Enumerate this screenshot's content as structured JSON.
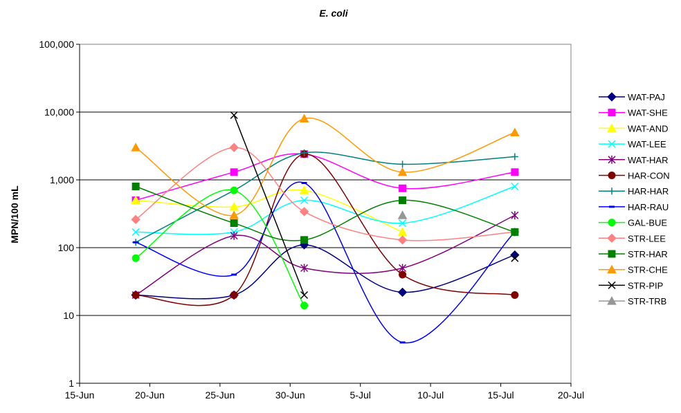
{
  "chart_data": {
    "type": "line",
    "title": "E. coli",
    "xlabel": "",
    "ylabel": "MPN/100 mL",
    "y_scale": "log",
    "ylim": [
      1,
      100000
    ],
    "y_ticks": [
      "1",
      "10",
      "100",
      "1,000",
      "10,000",
      "100,000"
    ],
    "xlim": [
      "2024-06-15",
      "2024-07-20"
    ],
    "x_ticks": [
      "15-Jun",
      "20-Jun",
      "25-Jun",
      "30-Jun",
      "5-Jul",
      "10-Jul",
      "15-Jul",
      "20-Jul"
    ],
    "grid": "horizontal major lines",
    "legend_position": "right",
    "smooth_lines": true,
    "series": [
      {
        "name": "WAT-PAJ",
        "color": "#000080",
        "marker": "diamond",
        "points": [
          [
            "2024-06-19",
            20
          ],
          [
            "2024-06-26",
            20
          ],
          [
            "2024-07-01",
            110
          ],
          [
            "2024-07-08",
            22
          ],
          [
            "2024-07-16",
            78
          ]
        ]
      },
      {
        "name": "WAT-SHE",
        "color": "#FF00FF",
        "marker": "square",
        "points": [
          [
            "2024-06-19",
            500
          ],
          [
            "2024-06-26",
            1300
          ],
          [
            "2024-07-01",
            2400
          ],
          [
            "2024-07-08",
            750
          ],
          [
            "2024-07-16",
            1300
          ]
        ]
      },
      {
        "name": "WAT-AND",
        "color": "#FFFF00",
        "marker": "triangle",
        "points": [
          [
            "2024-06-19",
            500
          ],
          [
            "2024-06-26",
            400
          ],
          [
            "2024-07-01",
            700
          ],
          [
            "2024-07-08",
            170
          ]
        ]
      },
      {
        "name": "WAT-LEE",
        "color": "#00FFFF",
        "marker": "x",
        "points": [
          [
            "2024-06-19",
            170
          ],
          [
            "2024-06-26",
            170
          ],
          [
            "2024-07-01",
            500
          ],
          [
            "2024-07-08",
            230
          ],
          [
            "2024-07-16",
            800
          ]
        ]
      },
      {
        "name": "WAT-HAR",
        "color": "#800080",
        "marker": "star",
        "points": [
          [
            "2024-06-19",
            20
          ],
          [
            "2024-06-26",
            150
          ],
          [
            "2024-07-01",
            50
          ],
          [
            "2024-07-08",
            50
          ],
          [
            "2024-07-16",
            300
          ]
        ]
      },
      {
        "name": "HAR-CON",
        "color": "#800000",
        "marker": "circle",
        "points": [
          [
            "2024-06-19",
            20
          ],
          [
            "2024-06-26",
            20
          ],
          [
            "2024-07-01",
            2400
          ],
          [
            "2024-07-08",
            40
          ],
          [
            "2024-07-16",
            20
          ]
        ]
      },
      {
        "name": "HAR-HAR",
        "color": "#008080",
        "marker": "plus",
        "points": [
          [
            "2024-06-19",
            120
          ],
          [
            "2024-06-26",
            700
          ],
          [
            "2024-07-01",
            2500
          ],
          [
            "2024-07-08",
            1700
          ],
          [
            "2024-07-16",
            2200
          ]
        ]
      },
      {
        "name": "HAR-RAU",
        "color": "#0000FF",
        "marker": "dash",
        "points": [
          [
            "2024-06-19",
            120
          ],
          [
            "2024-06-26",
            40
          ],
          [
            "2024-07-01",
            900
          ],
          [
            "2024-07-08",
            4
          ],
          [
            "2024-07-16",
            170
          ]
        ]
      },
      {
        "name": "GAL-BUE",
        "color": "#00FF00",
        "marker": "circle",
        "points": [
          [
            "2024-06-19",
            70
          ],
          [
            "2024-06-26",
            700
          ],
          [
            "2024-07-01",
            14
          ]
        ]
      },
      {
        "name": "STR-LEE",
        "color": "#FF8080",
        "marker": "diamond",
        "points": [
          [
            "2024-06-19",
            260
          ],
          [
            "2024-06-26",
            3000
          ],
          [
            "2024-07-01",
            340
          ],
          [
            "2024-07-08",
            130
          ],
          [
            "2024-07-16",
            170
          ]
        ]
      },
      {
        "name": "STR-HAR",
        "color": "#008000",
        "marker": "square",
        "points": [
          [
            "2024-06-19",
            800
          ],
          [
            "2024-06-26",
            230
          ],
          [
            "2024-07-01",
            130
          ],
          [
            "2024-07-08",
            500
          ],
          [
            "2024-07-16",
            170
          ]
        ]
      },
      {
        "name": "STR-CHE",
        "color": "#FF9900",
        "marker": "triangle",
        "points": [
          [
            "2024-06-19",
            3000
          ],
          [
            "2024-06-26",
            300
          ],
          [
            "2024-07-01",
            8000
          ],
          [
            "2024-07-08",
            1300
          ],
          [
            "2024-07-16",
            5000
          ]
        ]
      },
      {
        "name": "STR-PIP",
        "color": "#000000",
        "marker": "x",
        "points": [
          [
            "2024-06-26",
            9000
          ],
          [
            "2024-07-01",
            20
          ]
        ],
        "extra_points": [
          [
            "2024-07-16",
            70
          ]
        ]
      },
      {
        "name": "STR-TRB",
        "color": "#969696",
        "marker": "triangle",
        "points": [
          [
            "2024-07-08",
            300
          ]
        ]
      }
    ]
  }
}
